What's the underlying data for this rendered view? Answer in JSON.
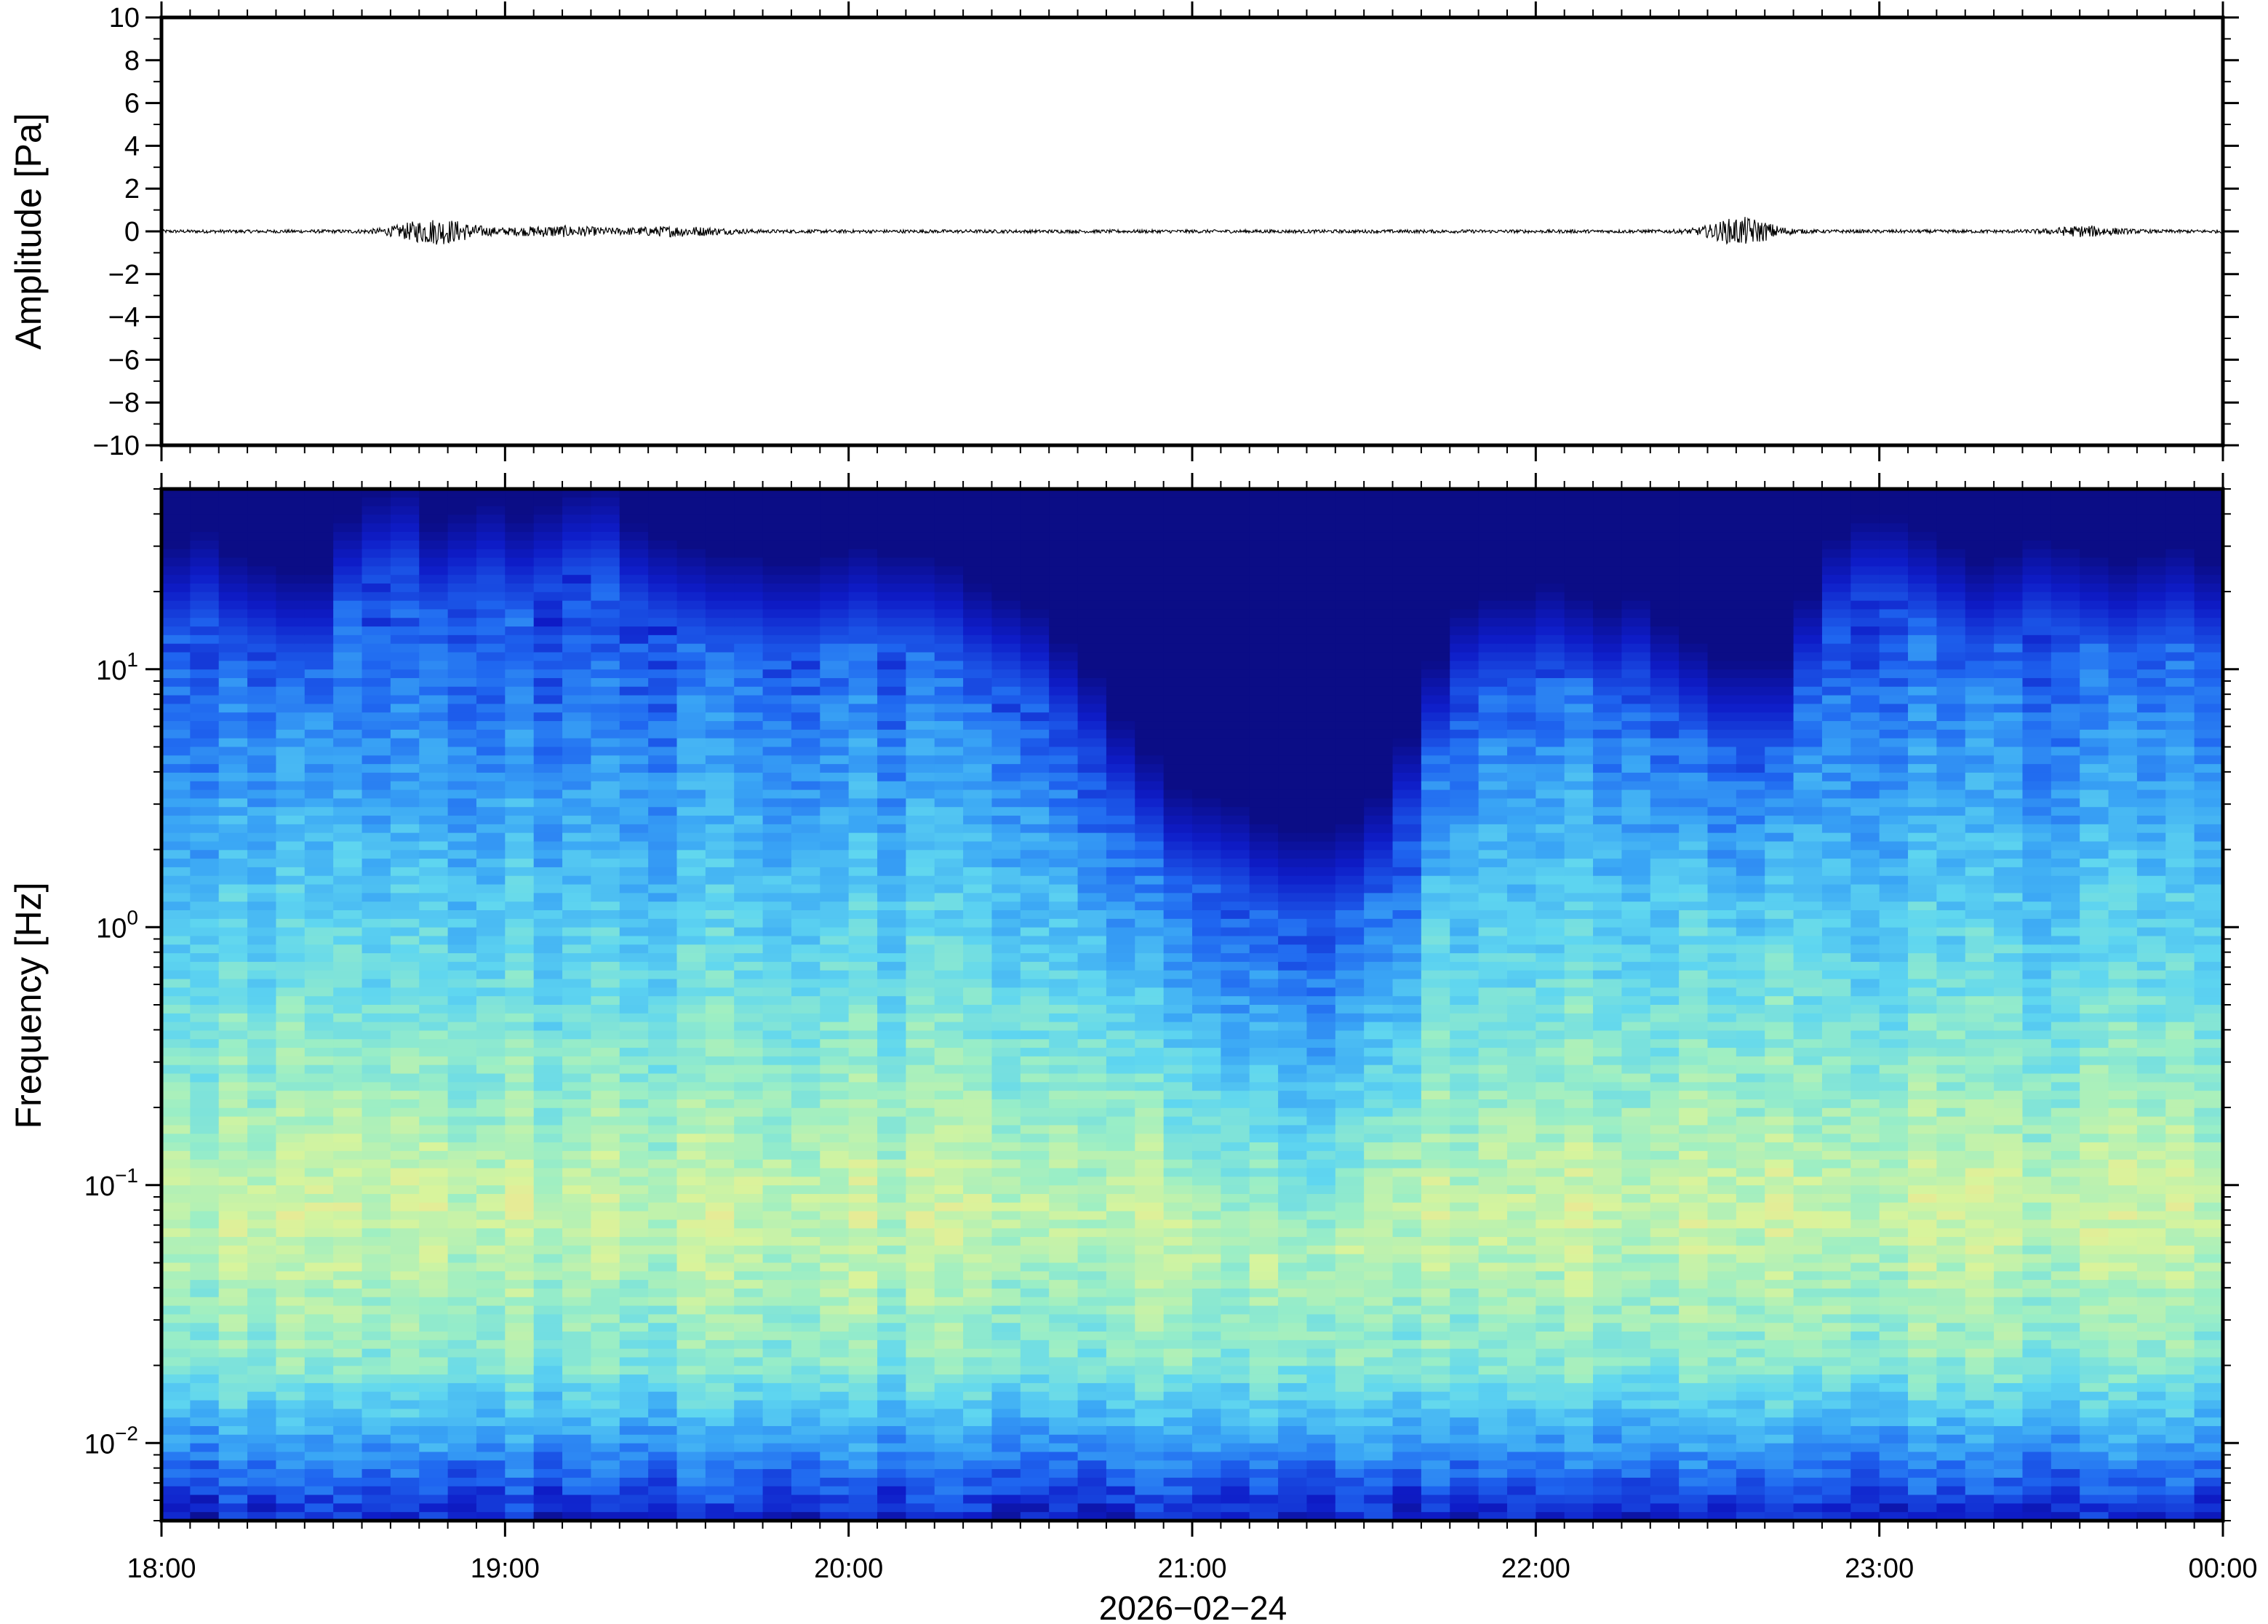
{
  "chart_data": [
    {
      "type": "line",
      "panel": "waveform",
      "ylabel": "Amplitude [Pa]",
      "ylim": [
        -10,
        10
      ],
      "yticks": [
        -10,
        -8,
        -6,
        -4,
        -2,
        0,
        2,
        4,
        6,
        8,
        10
      ],
      "ytick_labels": [
        "−10",
        "−8",
        "−6",
        "−4",
        "−2",
        "0",
        "2",
        "4",
        "6",
        "8",
        "10"
      ],
      "x_range_hours": [
        18,
        24
      ],
      "baseline": 0,
      "noise_amplitude": 0.08,
      "bursts": [
        {
          "center": 18.8,
          "width": 0.12,
          "amp": 0.55
        },
        {
          "center": 19.15,
          "width": 0.15,
          "amp": 0.2
        },
        {
          "center": 19.5,
          "width": 0.15,
          "amp": 0.18
        },
        {
          "center": 22.6,
          "width": 0.1,
          "amp": 0.6
        },
        {
          "center": 23.6,
          "width": 0.1,
          "amp": 0.2
        }
      ],
      "line_color": "#000000"
    },
    {
      "type": "heatmap",
      "panel": "spectrogram",
      "ylabel": "Frequency [Hz]",
      "yscale": "log",
      "ylim": [
        0.005,
        50
      ],
      "yticks": [
        0.01,
        0.1,
        1,
        10
      ],
      "ytick_labels": [
        {
          "base": "10",
          "exp": "−2"
        },
        {
          "base": "10",
          "exp": "−1"
        },
        {
          "base": "10",
          "exp": "0"
        },
        {
          "base": "10",
          "exp": "1"
        }
      ],
      "colormap": [
        "#0a0a7a",
        "#0e1cc8",
        "#1f66f0",
        "#3aa6f5",
        "#5fd6f0",
        "#9aeec6",
        "#d8f49c",
        "#f7e08e",
        "#f7b36a"
      ],
      "bin_minutes": 5,
      "upper_cutoff_hz": [
        14,
        16,
        13,
        12,
        11,
        11,
        18,
        22,
        24,
        17,
        19,
        21,
        18,
        20,
        23,
        24,
        17,
        15,
        14,
        13,
        13,
        12,
        12,
        13,
        14,
        13,
        13,
        12,
        10,
        9,
        8,
        6,
        4.5,
        3,
        2.2,
        1.6,
        1.5,
        1.4,
        1.2,
        1.1,
        1.1,
        1.2,
        1.5,
        2.5,
        5,
        8,
        9,
        9,
        10,
        9,
        8,
        9,
        7,
        6,
        5,
        5,
        5,
        9,
        15,
        18,
        18,
        16,
        14,
        12,
        13,
        15,
        14,
        13,
        12,
        13,
        14,
        12
      ]
    }
  ],
  "x_axis": {
    "tick_labels": [
      "18:00",
      "19:00",
      "20:00",
      "21:00",
      "22:00",
      "23:00",
      "00:00"
    ],
    "date_label": "2026−02−24"
  }
}
